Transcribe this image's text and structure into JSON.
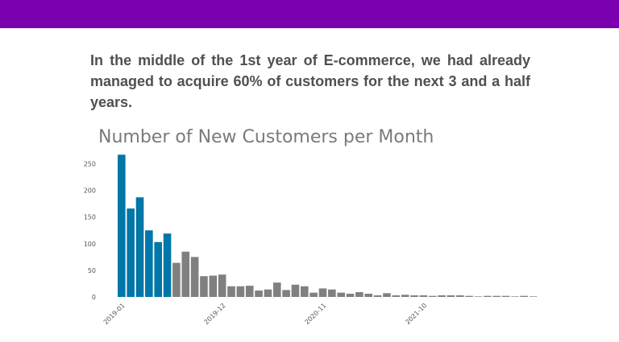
{
  "banner": {
    "color": "#7b00b0"
  },
  "headline": "In the middle of the 1st year of E-commerce, we had already managed to acquire 60% of customers for the next 3 and a half years.",
  "colors": {
    "highlight": "#0077a8",
    "rest": "#808080",
    "text": "#505050"
  },
  "chart_data": {
    "type": "bar",
    "title": "Number of New Customers per Month",
    "xlabel": "",
    "ylabel": "",
    "ylim": [
      0,
      270
    ],
    "yticks": [
      0,
      50,
      100,
      150,
      200,
      250
    ],
    "xtick_labels": [
      {
        "label": "2019-01",
        "index": 1
      },
      {
        "label": "2019-12",
        "index": 12
      },
      {
        "label": "2020-11",
        "index": 23
      },
      {
        "label": "2021-10",
        "index": 34
      }
    ],
    "highlighted_count": 6,
    "legend": "none",
    "grid": false,
    "values": [
      267,
      166,
      187,
      125,
      103,
      119,
      64,
      85,
      75,
      39,
      40,
      42,
      20,
      20,
      21,
      12,
      14,
      27,
      13,
      23,
      20,
      8,
      16,
      14,
      8,
      6,
      9,
      6,
      3,
      7,
      3,
      4,
      3,
      3,
      2,
      3,
      3,
      3,
      2,
      1,
      2,
      2,
      2,
      1,
      2,
      1
    ]
  }
}
